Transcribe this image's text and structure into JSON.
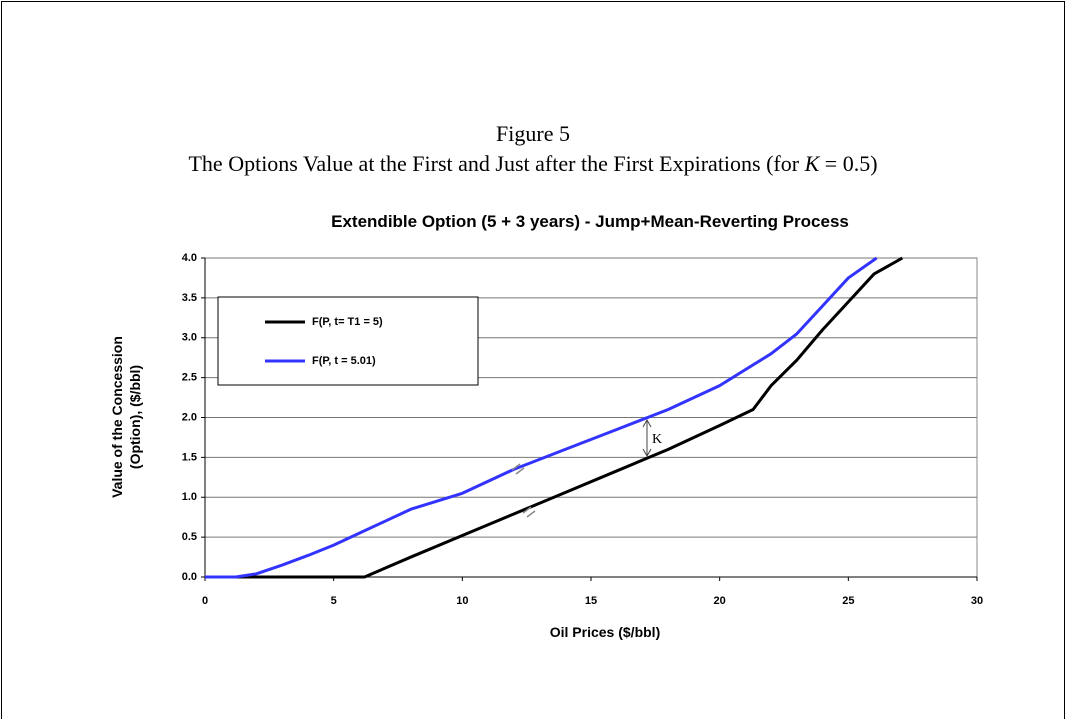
{
  "figure": {
    "label": "Figure 5",
    "caption": [
      "The Options Value at the First and Just after the First Expirations (for ",
      "K",
      " = 0.5)"
    ]
  },
  "chart_data": {
    "type": "line",
    "title": "Extendible Option (5 + 3 years) - Jump+Mean-Reverting Process",
    "xlabel": "Oil Prices ($/bbl)",
    "ylabel": [
      "Value of the Concession",
      "(Option), ($/bbl)"
    ],
    "xlim": [
      0,
      30
    ],
    "xticks": [
      0,
      5,
      10,
      15,
      20,
      25,
      30
    ],
    "ylim": [
      0,
      4
    ],
    "yticks": [
      {
        "value": 0,
        "label": "0.0"
      },
      {
        "value": 0.5,
        "label": "0.5"
      },
      {
        "value": 1,
        "label": "1.0"
      },
      {
        "value": 1.5,
        "label": "1.5"
      },
      {
        "value": 2,
        "label": "2.0"
      },
      {
        "value": 2.5,
        "label": "2.5"
      },
      {
        "value": 3,
        "label": "3.0"
      },
      {
        "value": 3.5,
        "label": "3.5"
      },
      {
        "value": 4,
        "label": "4.0"
      }
    ],
    "grid": true,
    "legend": "upper left",
    "series": [
      {
        "name": "F(P, t= T1 = 5)",
        "color": "#000000",
        "x": [
          0,
          2,
          4,
          6.2,
          8,
          10,
          12,
          14,
          16,
          18,
          20,
          21.3,
          22,
          23,
          24,
          25,
          26,
          27.1
        ],
        "values": [
          0,
          0,
          0,
          0,
          0.25,
          0.52,
          0.79,
          1.06,
          1.33,
          1.6,
          1.9,
          2.1,
          2.4,
          2.72,
          3.1,
          3.45,
          3.8,
          4.0
        ]
      },
      {
        "name": "F(P, t = 5.01)",
        "color": "#3333ff",
        "x": [
          0,
          1.2,
          2,
          3,
          4,
          5,
          6,
          7,
          8,
          10,
          12,
          14,
          16,
          17.2,
          18,
          20,
          21,
          22,
          23,
          24,
          25,
          26.1
        ],
        "values": [
          0,
          0,
          0.04,
          0.15,
          0.27,
          0.4,
          0.55,
          0.7,
          0.85,
          1.05,
          1.35,
          1.6,
          1.85,
          2.0,
          2.1,
          2.4,
          2.6,
          2.8,
          3.05,
          3.4,
          3.75,
          4.0
        ]
      }
    ],
    "annotation": "K"
  }
}
